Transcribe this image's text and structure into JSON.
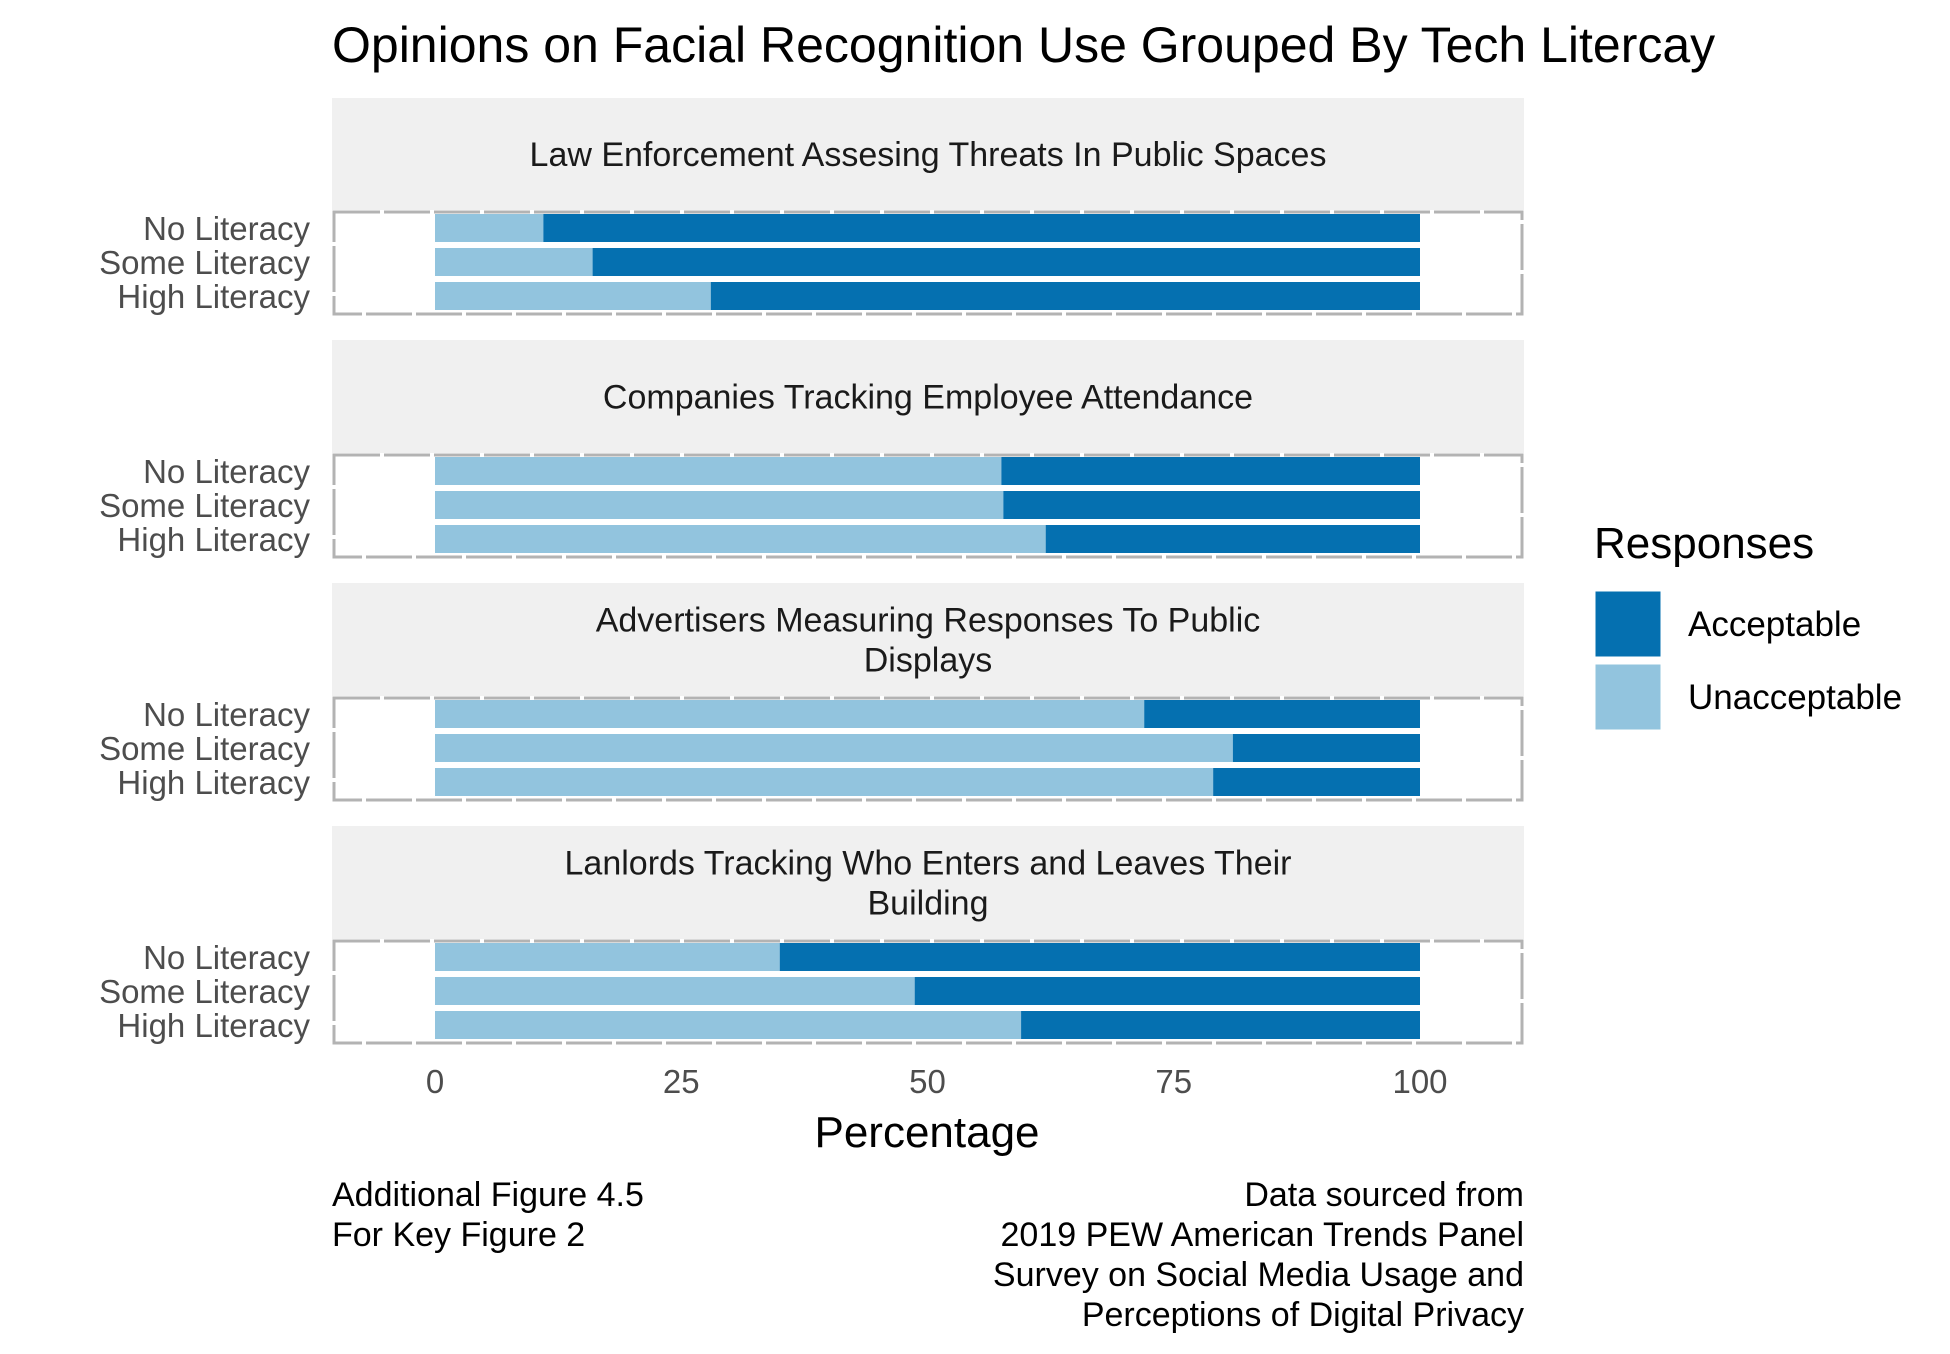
{
  "chart_data": {
    "type": "bar",
    "title": "Opinions on Facial Recognition Use Grouped By Tech Litercay",
    "xlabel": "Percentage",
    "ylabel": "",
    "xlim": [
      0,
      100
    ],
    "x_ticks": [
      "0",
      "25",
      "50",
      "75",
      "100"
    ],
    "categories": [
      "No Literacy",
      "Some Literacy",
      "High Literacy"
    ],
    "legend": {
      "title": "Responses",
      "placement": "right",
      "entries": [
        {
          "label": "Acceptable",
          "color": "#0570b0"
        },
        {
          "label": "Unacceptable",
          "color": "#92c4de"
        }
      ]
    },
    "stacking": "Unacceptable segment starts at 0, Acceptable fills remainder to 100",
    "panels": [
      {
        "title_lines": [
          "Law Enforcement Assesing Threats In Public Spaces"
        ],
        "series": [
          {
            "name": "Unacceptable",
            "values": [
              11,
              16,
              28
            ]
          },
          {
            "name": "Acceptable",
            "values": [
              89,
              84,
              72
            ]
          }
        ]
      },
      {
        "title_lines": [
          "Companies Tracking Employee Attendance"
        ],
        "series": [
          {
            "name": "Unacceptable",
            "values": [
              57.5,
              57.7,
              62
            ]
          },
          {
            "name": "Acceptable",
            "values": [
              42.5,
              42.3,
              38
            ]
          }
        ]
      },
      {
        "title_lines": [
          "Advertisers Measuring Responses To Public",
          "Displays"
        ],
        "series": [
          {
            "name": "Unacceptable",
            "values": [
              72,
              81,
              79
            ]
          },
          {
            "name": "Acceptable",
            "values": [
              28,
              19,
              21
            ]
          }
        ]
      },
      {
        "title_lines": [
          "Lanlords Tracking Who Enters and Leaves Their",
          "Building"
        ],
        "series": [
          {
            "name": "Unacceptable",
            "values": [
              35,
              48.7,
              59.5
            ]
          },
          {
            "name": "Acceptable",
            "values": [
              65,
              51.3,
              40.5
            ]
          }
        ]
      }
    ],
    "grid": true
  },
  "caption": {
    "left": [
      "Additional Figure 4.5",
      "For Key Figure 2"
    ],
    "right": [
      "Data sourced from",
      "2019 PEW American Trends Panel",
      "Survey on Social Media Usage and",
      "Perceptions of Digital Privacy"
    ]
  }
}
